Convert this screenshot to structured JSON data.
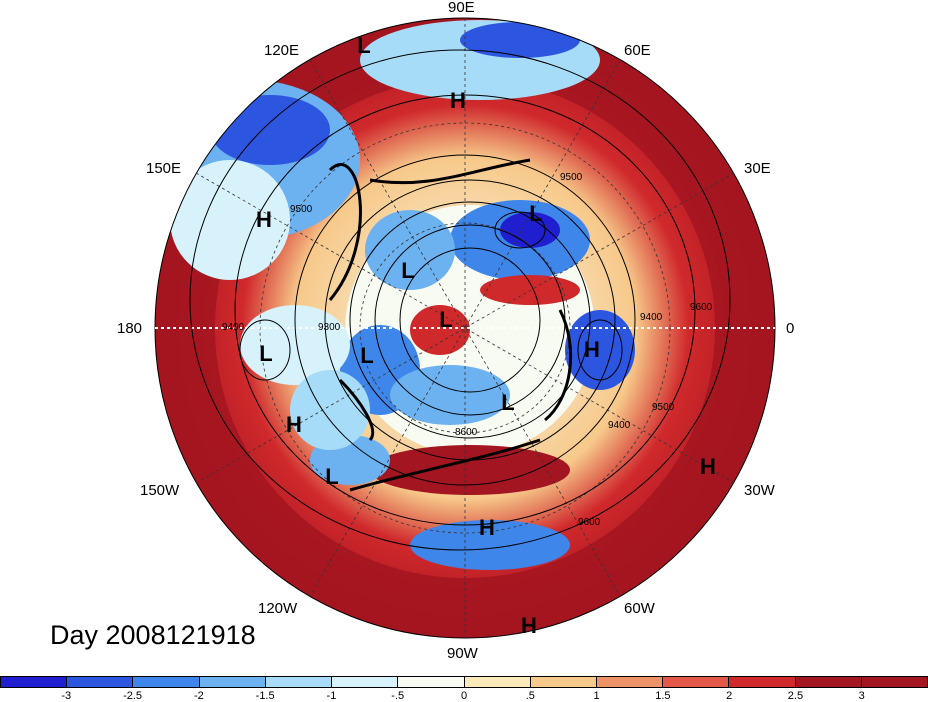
{
  "title": "Day 2008121918",
  "longitude_labels": {
    "top": "90E",
    "upper_left": "120E",
    "upper_right": "60E",
    "mid_left_upper": "150E",
    "mid_right_upper": "30E",
    "left": "180",
    "right": "0",
    "mid_left_lower": "150W",
    "mid_right_lower": "30W",
    "lower_left": "120W",
    "lower_right": "60W",
    "bottom": "90W"
  },
  "pressure_systems": [
    {
      "type": "L"
    },
    {
      "type": "H"
    },
    {
      "type": "L"
    },
    {
      "type": "L"
    },
    {
      "type": "L"
    },
    {
      "type": "L"
    },
    {
      "type": "H"
    },
    {
      "type": "H"
    },
    {
      "type": "L"
    },
    {
      "type": "L"
    },
    {
      "type": "L"
    },
    {
      "type": "H"
    },
    {
      "type": "H"
    },
    {
      "type": "H"
    },
    {
      "type": "H"
    }
  ],
  "contour_labels": [
    "9500",
    "9400",
    "9300",
    "9600",
    "9500",
    "9400",
    "8600",
    "9500",
    "9400",
    "9600"
  ],
  "colorbar": {
    "ticks": [
      "-3",
      "-2.5",
      "-2",
      "-1.5",
      "-1",
      "-.5",
      "0",
      ".5",
      "1",
      "1.5",
      "2",
      "2.5",
      "3"
    ],
    "colors": [
      "#1f1fcf",
      "#2c55e0",
      "#3f86ea",
      "#6cb1f0",
      "#a6dcf7",
      "#d8f2fb",
      "#f7fbf2",
      "#fbeab9",
      "#f7c98a",
      "#ee9368",
      "#e4584a",
      "#d0292c",
      "#a31520",
      "#a31520"
    ]
  }
}
